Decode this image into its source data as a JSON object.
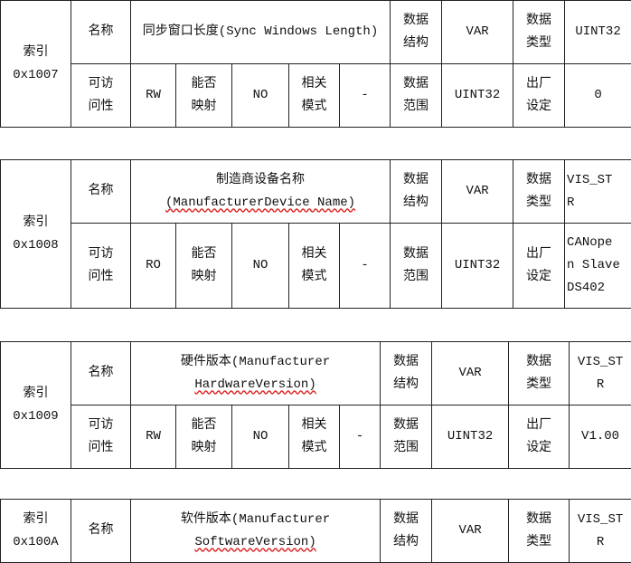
{
  "labels": {
    "index": "索引",
    "name": "名称",
    "data_structure": "数据\n结构",
    "data_type": "数据\n类型",
    "access": "可访\n问性",
    "mappable": "能否\n映射",
    "related_mode": "相关\n模式",
    "data_range": "数据\n范围",
    "factory_default": "出厂\n设定"
  },
  "tables": [
    {
      "index": "0x1007",
      "name": "同步窗口长度(Sync Windows Length)",
      "structure": "VAR",
      "type": "UINT32",
      "access": "RW",
      "mappable": "NO",
      "mode": "-",
      "range": "UINT32",
      "default": "0"
    },
    {
      "index": "0x1008",
      "name_cn": "制造商设备名称",
      "name_en": "(ManufacturerDevice Name)",
      "structure": "VAR",
      "type": "VIS_ST\nR",
      "access": "RO",
      "mappable": "NO",
      "mode": "-",
      "range": "UINT32",
      "default": "CANope\nn Slave\nDS402"
    },
    {
      "index": "0x1009",
      "name_cn": "硬件版本(Manufacturer",
      "name_en": "HardwareVersion)",
      "structure": "VAR",
      "type": "VIS_ST\nR",
      "access": "RW",
      "mappable": "NO",
      "mode": "-",
      "range": "UINT32",
      "default": "V1.00"
    },
    {
      "index": "0x100A",
      "name_cn": "软件版本(Manufacturer",
      "name_en": "SoftwareVersion)",
      "structure": "VAR",
      "type": "VIS_ST\nR"
    }
  ]
}
